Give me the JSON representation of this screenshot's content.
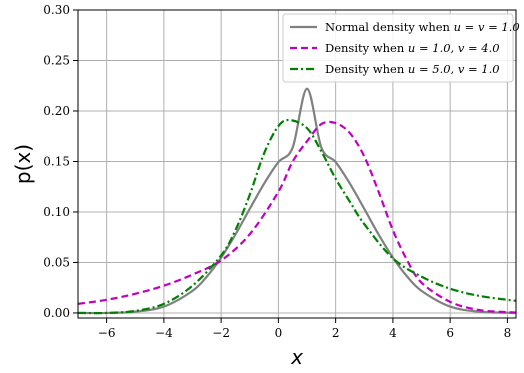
{
  "chart_data": {
    "type": "line",
    "xlabel": "x",
    "ylabel": "p(x)",
    "xlim": [
      -7,
      8.3
    ],
    "ylim": [
      -0.005,
      0.3
    ],
    "xticks": [
      -6,
      -4,
      -2,
      0,
      2,
      4,
      6,
      8
    ],
    "yticks": [
      0.0,
      0.05,
      0.1,
      0.15,
      0.2,
      0.25,
      0.3
    ],
    "xtick_labels": [
      "−6",
      "−4",
      "−2",
      "0",
      "2",
      "4",
      "6",
      "8"
    ],
    "ytick_labels": [
      "0.00",
      "0.05",
      "0.10",
      "0.15",
      "0.20",
      "0.25",
      "0.30"
    ],
    "grid": true,
    "legend_position": "top-right",
    "series": [
      {
        "name": "Normal density when u = v = 1.0",
        "legend": {
          "prefix": "Normal density when ",
          "math": "u = v = 1.0"
        },
        "color": "#808080",
        "style": "solid",
        "x": [
          -7,
          -6,
          -5,
          -4,
          -3,
          -2.5,
          -2,
          -1.5,
          -1,
          -0.5,
          0,
          0.5,
          1,
          1.5,
          2,
          2.5,
          3,
          3.5,
          4,
          4.5,
          5,
          6,
          7,
          8,
          8.3
        ],
        "y": [
          0.0,
          0.0,
          0.0013,
          0.0063,
          0.0219,
          0.036,
          0.0548,
          0.0777,
          0.1031,
          0.128,
          0.1494,
          0.1639,
          0.222,
          0.1639,
          0.1494,
          0.128,
          0.1031,
          0.0777,
          0.0548,
          0.036,
          0.0219,
          0.0063,
          0.0013,
          0.0002,
          0.0001
        ]
      },
      {
        "name": "Density when u = 1.0, v = 4.0",
        "legend": {
          "prefix": "Density when ",
          "math": "u = 1.0, v = 4.0"
        },
        "color": "#c000c0",
        "style": "dashed",
        "x": [
          -7,
          -6,
          -5,
          -4,
          -3,
          -2,
          -1,
          0,
          0.5,
          1,
          1.5,
          2,
          2.5,
          3,
          3.5,
          4,
          4.5,
          5,
          6,
          7,
          8,
          8.3
        ],
        "y": [
          0.009,
          0.013,
          0.019,
          0.027,
          0.038,
          0.052,
          0.078,
          0.12,
          0.15,
          0.17,
          0.187,
          0.188,
          0.178,
          0.155,
          0.12,
          0.082,
          0.052,
          0.03,
          0.011,
          0.003,
          0.0008,
          0.0005
        ]
      },
      {
        "name": "Density when u = 5.0, v = 1.0",
        "legend": {
          "prefix": "Density when ",
          "math": "u = 5.0, v = 1.0"
        },
        "color": "#008000",
        "style": "dashdot",
        "x": [
          -7,
          -6,
          -5,
          -4,
          -3,
          -2,
          -1.5,
          -1,
          -0.5,
          0,
          0.4,
          1,
          1.5,
          2,
          2.5,
          3,
          4,
          5,
          6,
          7,
          8,
          8.3
        ],
        "y": [
          0.0,
          0.0,
          0.002,
          0.009,
          0.027,
          0.057,
          0.082,
          0.117,
          0.158,
          0.185,
          0.191,
          0.183,
          0.16,
          0.133,
          0.11,
          0.088,
          0.054,
          0.036,
          0.024,
          0.017,
          0.013,
          0.012
        ]
      }
    ]
  }
}
